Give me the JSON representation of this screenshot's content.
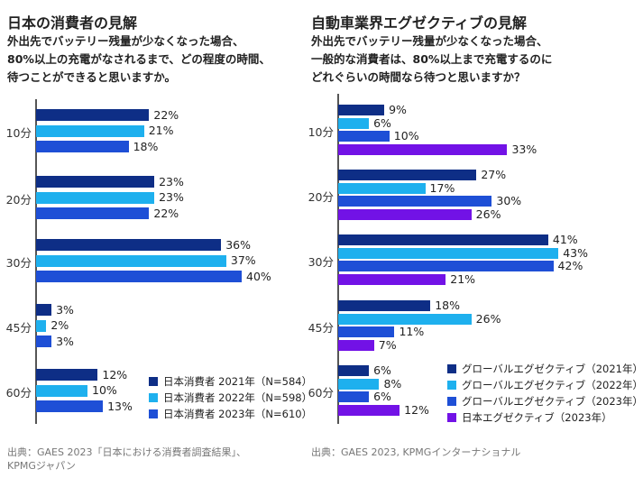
{
  "chart_data": [
    {
      "type": "bar",
      "orientation": "horizontal",
      "title": "日本の消費者の見解",
      "subtitle": [
        "外出先でバッテリー残量が少なくなった場合、",
        "80%以上の充電がなされるまで、どの程度の時間、",
        "待つことができると思いますか。"
      ],
      "categories": [
        "10分",
        "20分",
        "30分",
        "45分",
        "60分"
      ],
      "series": [
        {
          "name": "日本消費者 2021年（N=584）",
          "color": "#0E2E86",
          "values": [
            22,
            23,
            36,
            3,
            12
          ]
        },
        {
          "name": "日本消費者 2022年（N=598）",
          "color": "#1EB0EE",
          "values": [
            21,
            23,
            37,
            2,
            10
          ]
        },
        {
          "name": "日本消費者 2023年（N=610）",
          "color": "#1E4FD6",
          "values": [
            18,
            22,
            40,
            3,
            13
          ]
        }
      ],
      "value_suffix": "%",
      "legend_position": "bottom-right",
      "grid": false,
      "source": [
        "出典：GAES 2023「日本における消費者調査結果」、",
        "KPMGジャパン"
      ]
    },
    {
      "type": "bar",
      "orientation": "horizontal",
      "title": "自動車業界エグゼクティブの見解",
      "subtitle": [
        "外出先でバッテリー残量が少なくなった場合、",
        "一般的な消費者は、80%以上まで充電するのに",
        "どれぐらいの時間なら待つと思いますか？"
      ],
      "categories": [
        "10分",
        "20分",
        "30分",
        "45分",
        "60分"
      ],
      "series": [
        {
          "name": "グローバルエグゼクティブ（2021年）",
          "color": "#0E2E86",
          "values": [
            9,
            27,
            41,
            18,
            6
          ]
        },
        {
          "name": "グローバルエグゼクティブ（2022年）",
          "color": "#1EB0EE",
          "values": [
            6,
            17,
            43,
            26,
            8
          ]
        },
        {
          "name": "グローバルエグゼクティブ（2023年）",
          "color": "#1E4FD6",
          "values": [
            10,
            30,
            42,
            11,
            6
          ]
        },
        {
          "name": "日本エグゼクティブ（2023年）",
          "color": "#7212E6",
          "values": [
            33,
            26,
            21,
            7,
            12
          ]
        }
      ],
      "value_suffix": "%",
      "legend_position": "bottom-right",
      "grid": false,
      "source": [
        "出典：GAES 2023, KPMGインターナショナル"
      ]
    }
  ]
}
